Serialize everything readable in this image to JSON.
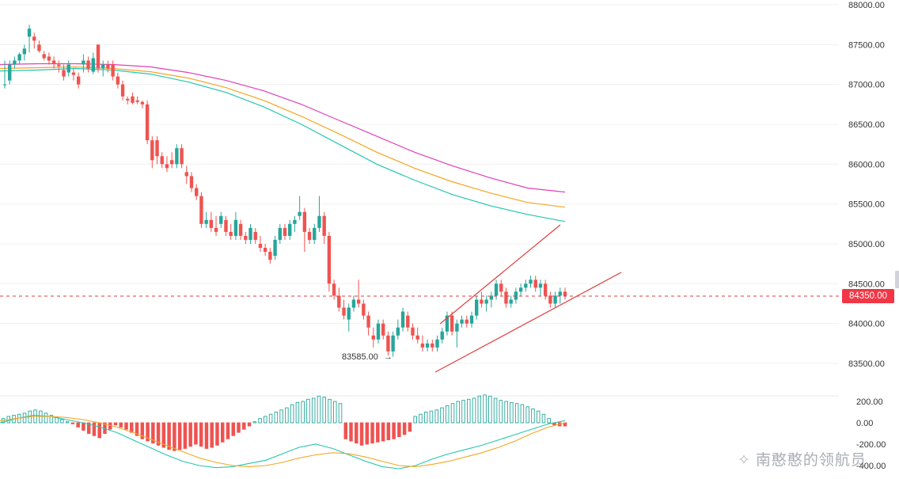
{
  "chart_data": [
    {
      "type": "candlestick",
      "title": "",
      "ylim": [
        83100,
        88100
      ],
      "y_ticks": [
        "88000.00",
        "87500.00",
        "87000.00",
        "86500.00",
        "86000.00",
        "85500.00",
        "85000.00",
        "84500.00",
        "84000.00",
        "83500.00"
      ],
      "current_price": 84350,
      "current_price_label": "84350.00",
      "low_annotation": "83585.00",
      "low_value": 83585,
      "candle_colors": {
        "up": "#26a69a",
        "down": "#ef5350"
      },
      "candles": [
        [
          87000,
          87300,
          86950,
          87000
        ],
        [
          87050,
          87300,
          87000,
          87250
        ],
        [
          87250,
          87350,
          87200,
          87300
        ],
        [
          87300,
          87400,
          87250,
          87380
        ],
        [
          87380,
          87500,
          87300,
          87450
        ],
        [
          87600,
          87750,
          87400,
          87700
        ],
        [
          87600,
          87650,
          87450,
          87550
        ],
        [
          87500,
          87550,
          87400,
          87420
        ],
        [
          87380,
          87420,
          87300,
          87330
        ],
        [
          87350,
          87400,
          87250,
          87300
        ],
        [
          87300,
          87350,
          87200,
          87260
        ],
        [
          87250,
          87300,
          87150,
          87230
        ],
        [
          87180,
          87250,
          87050,
          87100
        ],
        [
          87150,
          87300,
          87100,
          87250
        ],
        [
          87150,
          87200,
          87050,
          87120
        ],
        [
          87100,
          87150,
          86950,
          87000
        ],
        [
          87250,
          87380,
          87150,
          87300
        ],
        [
          87300,
          87350,
          87150,
          87200
        ],
        [
          87160,
          87400,
          87130,
          87330
        ],
        [
          87500,
          87500,
          87150,
          87200
        ],
        [
          87200,
          87300,
          87100,
          87250
        ],
        [
          87250,
          87300,
          87150,
          87200
        ],
        [
          87250,
          87300,
          87050,
          87100
        ],
        [
          87100,
          87150,
          86950,
          87000
        ],
        [
          87000,
          87050,
          86800,
          86850
        ],
        [
          86820,
          86850,
          86750,
          86800
        ],
        [
          86850,
          86900,
          86750,
          86770
        ],
        [
          86800,
          86850,
          86750,
          86780
        ],
        [
          86780,
          86800,
          86700,
          86750
        ],
        [
          86750,
          86800,
          86250,
          86300
        ],
        [
          86300,
          86350,
          85950,
          86050
        ],
        [
          86300,
          86350,
          86000,
          86100
        ],
        [
          86100,
          86150,
          85950,
          86000
        ],
        [
          86000,
          86100,
          85900,
          85950
        ],
        [
          86050,
          86150,
          85950,
          86000
        ],
        [
          86000,
          86250,
          85950,
          86200
        ],
        [
          86200,
          86250,
          85950,
          86000
        ],
        [
          85900,
          85980,
          85750,
          85850
        ],
        [
          85850,
          85900,
          85650,
          85700
        ],
        [
          85700,
          85750,
          85550,
          85600
        ],
        [
          85600,
          85650,
          85200,
          85250
        ],
        [
          85250,
          85400,
          85200,
          85300
        ],
        [
          85300,
          85400,
          85150,
          85200
        ],
        [
          85200,
          85350,
          85100,
          85150
        ],
        [
          85250,
          85400,
          85200,
          85350
        ],
        [
          85300,
          85350,
          85100,
          85150
        ],
        [
          85150,
          85250,
          85050,
          85100
        ],
        [
          85100,
          85400,
          85050,
          85300
        ],
        [
          85250,
          85300,
          85050,
          85100
        ],
        [
          85100,
          85150,
          85000,
          85050
        ],
        [
          85050,
          85250,
          85000,
          85200
        ],
        [
          85150,
          85200,
          85000,
          85050
        ],
        [
          85000,
          85100,
          84900,
          84950
        ],
        [
          84950,
          85000,
          84850,
          84900
        ],
        [
          84900,
          84950,
          84750,
          84800
        ],
        [
          84850,
          85100,
          84800,
          85050
        ],
        [
          85050,
          85250,
          85000,
          85200
        ],
        [
          85200,
          85250,
          85050,
          85100
        ],
        [
          85100,
          85300,
          85050,
          85250
        ],
        [
          85250,
          85350,
          85150,
          85300
        ],
        [
          85350,
          85600,
          85300,
          85400
        ],
        [
          85400,
          85450,
          84900,
          85150
        ],
        [
          85150,
          85200,
          85000,
          85050
        ],
        [
          85050,
          85250,
          85000,
          85200
        ],
        [
          85200,
          85600,
          85150,
          85350
        ],
        [
          85350,
          85400,
          85000,
          85100
        ],
        [
          85100,
          85150,
          84400,
          84500
        ],
        [
          84500,
          84550,
          84300,
          84350
        ],
        [
          84350,
          84450,
          84150,
          84200
        ],
        [
          84200,
          84300,
          84050,
          84100
        ],
        [
          84050,
          84250,
          83900,
          84200
        ],
        [
          84200,
          84350,
          84150,
          84300
        ],
        [
          84300,
          84550,
          84200,
          84250
        ],
        [
          84250,
          84300,
          84050,
          84100
        ],
        [
          84100,
          84150,
          83850,
          83950
        ],
        [
          83850,
          83950,
          83700,
          83800
        ],
        [
          83800,
          84050,
          83750,
          84000
        ],
        [
          84000,
          84050,
          83800,
          83850
        ],
        [
          83850,
          83900,
          83600,
          83650
        ],
        [
          83650,
          83900,
          83585,
          83850
        ],
        [
          83850,
          84050,
          83800,
          83950
        ],
        [
          83950,
          84200,
          83900,
          84150
        ],
        [
          84100,
          84150,
          83900,
          83950
        ],
        [
          83950,
          84000,
          83800,
          83850
        ],
        [
          83850,
          83950,
          83750,
          83800
        ],
        [
          83750,
          83850,
          83650,
          83700
        ],
        [
          83700,
          83800,
          83650,
          83750
        ],
        [
          83750,
          83800,
          83650,
          83700
        ],
        [
          83700,
          83850,
          83650,
          83800
        ],
        [
          83800,
          83950,
          83750,
          83900
        ],
        [
          83900,
          84150,
          83850,
          84100
        ],
        [
          84100,
          84150,
          83850,
          83900
        ],
        [
          83900,
          84050,
          83700,
          84000
        ],
        [
          84000,
          84100,
          83950,
          84050
        ],
        [
          84050,
          84100,
          83950,
          84000
        ],
        [
          84000,
          84150,
          83950,
          84100
        ],
        [
          84100,
          84350,
          84050,
          84300
        ],
        [
          84300,
          84400,
          84200,
          84250
        ],
        [
          84250,
          84350,
          84150,
          84300
        ],
        [
          84300,
          84400,
          84200,
          84350
        ],
        [
          84350,
          84550,
          84300,
          84500
        ],
        [
          84500,
          84550,
          84350,
          84400
        ],
        [
          84400,
          84450,
          84200,
          84250
        ],
        [
          84250,
          84350,
          84200,
          84300
        ],
        [
          84300,
          84450,
          84250,
          84400
        ],
        [
          84400,
          84500,
          84350,
          84450
        ],
        [
          84450,
          84550,
          84400,
          84500
        ],
        [
          84500,
          84600,
          84450,
          84550
        ],
        [
          84550,
          84600,
          84400,
          84450
        ],
        [
          84450,
          84550,
          84350,
          84500
        ],
        [
          84500,
          84550,
          84300,
          84350
        ],
        [
          84350,
          84400,
          84200,
          84250
        ],
        [
          84250,
          84400,
          84200,
          84350
        ],
        [
          84350,
          84450,
          84250,
          84400
        ],
        [
          84400,
          84450,
          84300,
          84350
        ]
      ],
      "moving_averages": [
        {
          "color": "#e040b8",
          "values": [
            87250,
            87260,
            87260,
            87250,
            87220,
            87150,
            87050,
            86920,
            86750,
            86550,
            86350,
            86150,
            85980,
            85830,
            85700,
            85650
          ]
        },
        {
          "color": "#f5a623",
          "values": [
            87200,
            87210,
            87220,
            87200,
            87160,
            87080,
            86960,
            86800,
            86600,
            86380,
            86150,
            85950,
            85780,
            85640,
            85520,
            85460
          ]
        },
        {
          "color": "#26c6b0",
          "values": [
            87170,
            87180,
            87200,
            87180,
            87130,
            87030,
            86900,
            86720,
            86500,
            86250,
            86000,
            85800,
            85620,
            85480,
            85370,
            85280
          ]
        }
      ],
      "trend_lines": [
        {
          "color": "#e03e3e",
          "points": [
            [
              84000,
              62
            ],
            [
              85250,
              98
            ]
          ]
        },
        {
          "color": "#e03e3e",
          "points": [
            [
              83400,
              62
            ],
            [
              84650,
              112
            ]
          ]
        }
      ]
    },
    {
      "type": "macd",
      "y_ticks": [
        "200.00",
        "0.00",
        "-200.00",
        "-400.00"
      ],
      "ylim": [
        -480,
        260
      ],
      "histogram": [
        40,
        60,
        70,
        80,
        90,
        110,
        120,
        110,
        90,
        70,
        50,
        30,
        10,
        -10,
        -40,
        -70,
        -100,
        -120,
        -140,
        -100,
        -60,
        -20,
        -40,
        -60,
        -90,
        -120,
        -150,
        -170,
        -190,
        -210,
        -230,
        -250,
        -260,
        -250,
        -240,
        -220,
        -200,
        -220,
        -240,
        -230,
        -210,
        -180,
        -150,
        -120,
        -90,
        -60,
        -30,
        10,
        40,
        60,
        80,
        100,
        120,
        140,
        170,
        190,
        200,
        220,
        230,
        250,
        240,
        220,
        200,
        180,
        -150,
        -170,
        -190,
        -210,
        -200,
        -190,
        -180,
        -170,
        -160,
        -150,
        -130,
        -110,
        -80,
        60,
        80,
        100,
        110,
        120,
        140,
        160,
        180,
        200,
        210,
        220,
        230,
        250,
        260,
        250,
        230,
        210,
        200,
        190,
        180,
        170,
        150,
        130,
        110,
        80,
        40,
        -20,
        -30,
        -30
      ],
      "dif_line": {
        "color": "#26c6b0"
      },
      "dea_line": {
        "color": "#f5a623"
      }
    }
  ],
  "watermark_text": "南憨憨的领航员",
  "watermark_icon": "compass-icon"
}
